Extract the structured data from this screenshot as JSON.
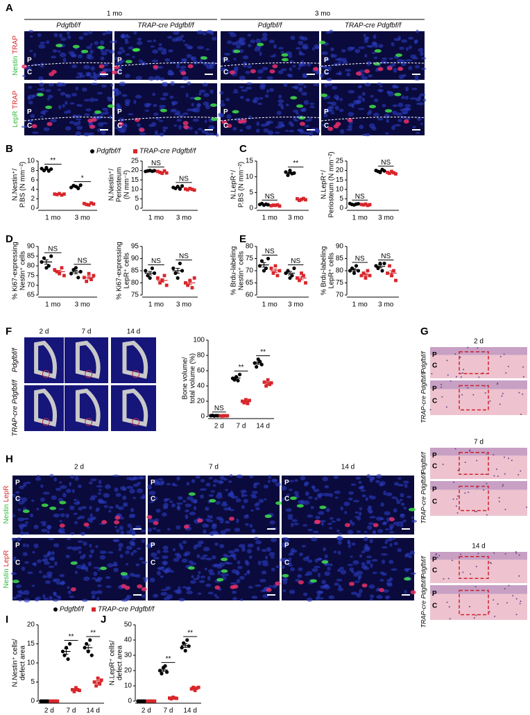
{
  "figure": {
    "panel_labels": [
      "A",
      "B",
      "C",
      "D",
      "E",
      "F",
      "G",
      "H",
      "I",
      "J"
    ],
    "groups": [
      {
        "name": "Pdgfbf/f",
        "color": "#000000"
      },
      {
        "name": "TRAP-cre Pdgfbf/f",
        "color": "#d7262b"
      }
    ],
    "A": {
      "ages": [
        "1 mo",
        "3 mo"
      ],
      "genotypes": [
        "Pdgfbf/f",
        "TRAP-cre Pdgfbf/f"
      ],
      "stains": [
        [
          "Nestin",
          "TRAP"
        ],
        [
          "LepR",
          "TRAP"
        ]
      ],
      "regions": [
        "P",
        "C"
      ]
    },
    "F": {
      "times": [
        "2 d",
        "7 d",
        "14 d"
      ],
      "genotypes": [
        "Pdgfbf/f",
        "TRAP-cre Pdgfbf/f"
      ]
    },
    "G": {
      "times": [
        "2 d",
        "7 d",
        "14 d"
      ],
      "genotypes": [
        "Pdgfbf/f",
        "TRAP-cre Pdgfbf/f"
      ],
      "regions": [
        "P",
        "C"
      ]
    },
    "H": {
      "times": [
        "2 d",
        "7 d",
        "14 d"
      ],
      "stains": [
        "Nestin",
        "LepR"
      ],
      "regions": [
        "P",
        "C"
      ]
    }
  },
  "chart_data": [
    {
      "type": "dot",
      "ylabel": [
        "N.Nestin⁺/",
        "P.BS (N mm⁻²)"
      ],
      "categories": [
        "1 mo",
        "3 mo"
      ],
      "ylim": [
        0,
        10
      ],
      "yticks": [
        0,
        2,
        4,
        6,
        8,
        10
      ],
      "series": [
        {
          "values": [
            [
              8.4,
              8.0,
              8.6,
              7.9,
              8.3
            ],
            [
              4.4,
              4.8,
              4.6,
              4.2,
              4.9
            ]
          ]
        },
        {
          "values": [
            [
              3.0,
              2.9,
              3.1,
              2.8,
              3.0
            ],
            [
              1.0,
              0.8,
              0.7,
              1.1,
              0.9
            ]
          ]
        }
      ],
      "significance": [
        "**",
        "*"
      ]
    },
    {
      "type": "dot",
      "ylabel": [
        "N.Nestin⁺/",
        "Periosteum",
        "(N mm⁻²)"
      ],
      "categories": [
        "1 mo",
        "3 mo"
      ],
      "ylim": [
        0,
        25
      ],
      "yticks": [
        0,
        5,
        10,
        15,
        20,
        25
      ],
      "series": [
        {
          "values": [
            [
              19.5,
              19.8,
              20.0,
              19.6,
              19.9
            ],
            [
              11.0,
              10.5,
              11.5,
              10.2,
              11.8
            ]
          ]
        },
        {
          "values": [
            [
              19.5,
              19.0,
              18.5,
              19.8,
              18.7
            ],
            [
              10.2,
              9.8,
              10.5,
              10.0,
              9.6
            ]
          ]
        }
      ],
      "significance": [
        "NS",
        "NS"
      ]
    },
    {
      "type": "dot",
      "ylabel": [
        "N.LepR⁺/",
        "P.BS (N mm⁻²)"
      ],
      "categories": [
        "1 mo",
        "3 mo"
      ],
      "ylim": [
        0,
        15
      ],
      "yticks": [
        0,
        5,
        10,
        15
      ],
      "series": [
        {
          "values": [
            [
              1.2,
              1.5,
              1.0,
              1.3,
              1.1
            ],
            [
              11.5,
              10.5,
              12.0,
              11.0,
              11.2
            ]
          ]
        },
        {
          "values": [
            [
              0.8,
              1.0,
              0.9,
              1.1,
              0.7
            ],
            [
              3.0,
              2.5,
              2.8,
              3.1,
              2.7
            ]
          ]
        }
      ],
      "significance": [
        "NS",
        "**"
      ]
    },
    {
      "type": "dot",
      "ylabel": [
        "N.LepR⁺/",
        "Periosteum (N mm⁻²)"
      ],
      "categories": [
        "1 mo",
        "3 mo"
      ],
      "ylim": [
        0,
        25
      ],
      "yticks": [
        0,
        5,
        10,
        15,
        20,
        25
      ],
      "series": [
        {
          "values": [
            [
              2.5,
              2.0,
              1.8,
              2.2,
              2.4
            ],
            [
              20.0,
              19.5,
              19.0,
              20.5,
              19.8
            ]
          ]
        },
        {
          "values": [
            [
              2.0,
              1.8,
              2.2,
              1.5,
              1.9
            ],
            [
              19.0,
              18.5,
              19.5,
              18.8,
              18.2
            ]
          ]
        }
      ],
      "significance": [
        "NS",
        "NS"
      ]
    },
    {
      "type": "dot",
      "ylabel": [
        "% Ki67-expressing",
        "Nestin⁺ cells"
      ],
      "categories": [
        "1 mo",
        "3 mo"
      ],
      "ylim": [
        65,
        90
      ],
      "yticks": [
        65,
        70,
        75,
        80,
        85,
        90
      ],
      "series": [
        {
          "values": [
            [
              82,
              84,
              79,
              80,
              85
            ],
            [
              76,
              78,
              79,
              74,
              77
            ]
          ]
        },
        {
          "values": [
            [
              78,
              77,
              76,
              79,
              75
            ],
            [
              74,
              72,
              76,
              73,
              75
            ]
          ]
        }
      ],
      "significance": [
        "NS",
        "NS"
      ]
    },
    {
      "type": "dot",
      "ylabel": [
        "% Ki67-expressing",
        "LepR⁺ cells"
      ],
      "categories": [
        "1 mo",
        "3 mo"
      ],
      "ylim": [
        75,
        95
      ],
      "yticks": [
        75,
        80,
        85,
        90,
        95
      ],
      "series": [
        {
          "values": [
            [
              85,
              83,
              82,
              86,
              84
            ],
            [
              86,
              84,
              82,
              88,
              85
            ]
          ]
        },
        {
          "values": [
            [
              82,
              80,
              81,
              83,
              79
            ],
            [
              80,
              79,
              81,
              78,
              82
            ]
          ]
        }
      ],
      "significance": [
        "NS",
        "NS"
      ]
    },
    {
      "type": "dot",
      "ylabel": [
        "% Brdu-labeling",
        "Nestin⁺ cells"
      ],
      "categories": [
        "1 mo",
        "3 mo"
      ],
      "ylim": [
        60,
        80
      ],
      "yticks": [
        60,
        65,
        70,
        75,
        80
      ],
      "series": [
        {
          "values": [
            [
              72,
              74,
              70,
              71,
              75
            ],
            [
              69,
              70,
              67,
              68,
              71
            ]
          ]
        },
        {
          "values": [
            [
              71,
              69,
              72,
              68,
              70
            ],
            [
              67,
              66,
              69,
              68,
              65
            ]
          ]
        }
      ],
      "significance": [
        "NS",
        "NS"
      ]
    },
    {
      "type": "dot",
      "ylabel": [
        "% Brdu-labeling",
        "LepR⁺ cells"
      ],
      "categories": [
        "1 mo",
        "3 mo"
      ],
      "ylim": [
        70,
        90
      ],
      "yticks": [
        70,
        75,
        80,
        85,
        90
      ],
      "series": [
        {
          "values": [
            [
              80,
              81,
              79,
              82,
              80
            ],
            [
              82,
              81,
              83,
              80,
              83
            ]
          ]
        },
        {
          "values": [
            [
              78,
              79,
              77,
              80,
              78
            ],
            [
              79,
              82,
              78,
              80,
              76
            ]
          ]
        }
      ],
      "significance": [
        "NS",
        "NS"
      ]
    },
    {
      "type": "dot",
      "ylabel": [
        "Bone volume/",
        "total volume (%)"
      ],
      "categories": [
        "2 d",
        "7 d",
        "14 d"
      ],
      "ylim": [
        0,
        100
      ],
      "yticks": [
        0,
        20,
        40,
        60,
        80,
        100
      ],
      "series": [
        {
          "values": [
            [
              1,
              1.5,
              0.8,
              1.2,
              1
            ],
            [
              50,
              48,
              52,
              47,
              55
            ],
            [
              70,
              65,
              75,
              72,
              68
            ]
          ]
        },
        {
          "values": [
            [
              1,
              0.5,
              1.2,
              0.8,
              1
            ],
            [
              20,
              18,
              22,
              17,
              21
            ],
            [
              45,
              40,
              48,
              42,
              44
            ]
          ]
        }
      ],
      "significance": [
        "NS",
        "**",
        "**"
      ]
    },
    {
      "type": "dot",
      "ylabel": [
        "N.Nestin⁺ cells/",
        "defect area"
      ],
      "categories": [
        "2 d",
        "7 d",
        "14 d"
      ],
      "ylim": [
        0,
        20
      ],
      "yticks": [
        0,
        5,
        10,
        15,
        20
      ],
      "series": [
        {
          "values": [
            [
              0,
              0,
              0,
              0,
              0
            ],
            [
              13,
              12,
              14,
              11,
              15
            ],
            [
              14,
              15,
              13,
              16,
              12
            ]
          ]
        },
        {
          "values": [
            [
              0,
              0,
              0,
              0,
              0
            ],
            [
              3,
              2.5,
              3.5,
              3,
              2.8
            ],
            [
              5,
              4,
              6,
              4.5,
              5.5
            ]
          ]
        }
      ],
      "significance": [
        null,
        "**",
        "**"
      ]
    },
    {
      "type": "dot",
      "ylabel": [
        "N.LepR⁺ cells/",
        "defect area"
      ],
      "categories": [
        "2 d",
        "7 d",
        "14 d"
      ],
      "ylim": [
        0,
        50
      ],
      "yticks": [
        0,
        10,
        20,
        30,
        40,
        50
      ],
      "series": [
        {
          "values": [
            [
              0,
              0,
              0,
              0,
              0
            ],
            [
              20,
              18,
              22,
              23,
              19
            ],
            [
              35,
              38,
              33,
              40,
              36
            ]
          ]
        },
        {
          "values": [
            [
              0,
              0,
              0,
              0,
              0
            ],
            [
              2,
              1.5,
              2.5,
              2,
              1.8
            ],
            [
              8,
              9,
              7,
              8.5,
              9
            ]
          ]
        }
      ],
      "significance": [
        null,
        "**",
        "**"
      ]
    }
  ]
}
